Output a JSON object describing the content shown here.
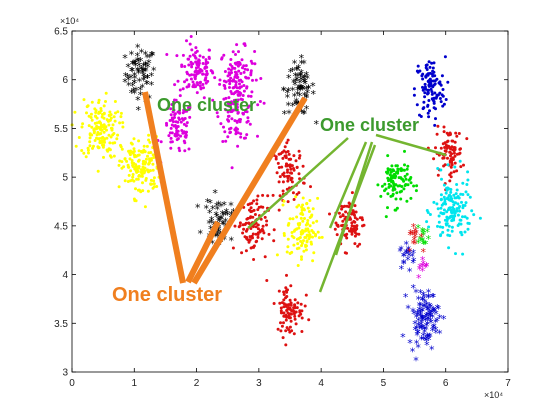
{
  "colors": {
    "black": "#000000",
    "magenta": "#dd00dd",
    "yellow": "#ffff00",
    "red": "#dd1111",
    "blue": "#0000cc",
    "green": "#00dd00",
    "cyan": "#00e5ee",
    "orange_annotation": "#f07f1f",
    "green_annotation": "#74b530"
  },
  "annotations": [
    {
      "text": "One cluster",
      "color": "#3c9a2e"
    },
    {
      "text": "One cluster",
      "color": "#3c9a2e"
    },
    {
      "text": "One cluster",
      "color": "#f07f1f"
    }
  ],
  "chart_data": {
    "type": "scatter",
    "title": "",
    "xlabel": "",
    "ylabel": "",
    "xlim": [
      0,
      70000
    ],
    "ylim": [
      30000,
      65000
    ],
    "x_ticks": [
      0,
      10000,
      20000,
      30000,
      40000,
      50000,
      60000,
      70000
    ],
    "y_ticks": [
      30000,
      35000,
      40000,
      45000,
      50000,
      55000,
      60000,
      65000
    ],
    "x_tick_labels": [
      "0",
      "1",
      "2",
      "3",
      "4",
      "5",
      "6",
      "7"
    ],
    "y_tick_labels": [
      "3",
      "3.5",
      "4",
      "4.5",
      "5",
      "5.5",
      "6",
      "6.5"
    ],
    "x_exponent_label": "×10⁴",
    "y_exponent_label": "×10⁴",
    "grid": false,
    "clusters": [
      {
        "color": "black",
        "marker": "star",
        "center": [
          11000,
          60500
        ],
        "spread": [
          2200,
          2500
        ],
        "count": 70
      },
      {
        "color": "magenta",
        "marker": "dot",
        "center": [
          20000,
          61000
        ],
        "spread": [
          2500,
          2500
        ],
        "count": 110
      },
      {
        "color": "magenta",
        "marker": "dot",
        "center": [
          26500,
          60500
        ],
        "spread": [
          2500,
          2500
        ],
        "count": 110
      },
      {
        "color": "black",
        "marker": "star",
        "center": [
          36500,
          59000
        ],
        "spread": [
          2200,
          2500
        ],
        "count": 70
      },
      {
        "color": "magenta",
        "marker": "dot",
        "center": [
          17000,
          55000
        ],
        "spread": [
          2200,
          2500
        ],
        "count": 90
      },
      {
        "color": "magenta",
        "marker": "dot",
        "center": [
          26500,
          56500
        ],
        "spread": [
          2500,
          2500
        ],
        "count": 90
      },
      {
        "color": "blue",
        "marker": "dot",
        "center": [
          57500,
          59000
        ],
        "spread": [
          2200,
          3000
        ],
        "count": 110
      },
      {
        "color": "yellow",
        "marker": "dot",
        "center": [
          4500,
          55000
        ],
        "spread": [
          2800,
          2800
        ],
        "count": 150
      },
      {
        "color": "yellow",
        "marker": "dot",
        "center": [
          11000,
          51000
        ],
        "spread": [
          2800,
          2800
        ],
        "count": 150
      },
      {
        "color": "red",
        "marker": "dot",
        "center": [
          60500,
          52500
        ],
        "spread": [
          2000,
          2200
        ],
        "count": 90
      },
      {
        "color": "red",
        "marker": "dot",
        "center": [
          35000,
          50500
        ],
        "spread": [
          2300,
          2500
        ],
        "count": 90
      },
      {
        "color": "green",
        "marker": "dot",
        "center": [
          52000,
          49500
        ],
        "spread": [
          2200,
          2200
        ],
        "count": 100
      },
      {
        "color": "cyan",
        "marker": "dot",
        "center": [
          61000,
          46500
        ],
        "spread": [
          2800,
          3200
        ],
        "count": 150
      },
      {
        "color": "black",
        "marker": "star",
        "center": [
          23500,
          45500
        ],
        "spread": [
          2000,
          2000
        ],
        "count": 60
      },
      {
        "color": "red",
        "marker": "dot",
        "center": [
          29000,
          45000
        ],
        "spread": [
          2200,
          2700
        ],
        "count": 100
      },
      {
        "color": "yellow",
        "marker": "dot",
        "center": [
          37000,
          44500
        ],
        "spread": [
          2200,
          3000
        ],
        "count": 110
      },
      {
        "color": "red",
        "marker": "dot",
        "center": [
          44500,
          45500
        ],
        "spread": [
          2200,
          2500
        ],
        "count": 90
      },
      {
        "color": "blue",
        "marker": "star",
        "center": [
          54000,
          42000
        ],
        "spread": [
          1200,
          1200
        ],
        "count": 20
      },
      {
        "color": "green",
        "marker": "star",
        "center": [
          56500,
          43500
        ],
        "spread": [
          900,
          1200
        ],
        "count": 14
      },
      {
        "color": "red",
        "marker": "star",
        "center": [
          55000,
          44000
        ],
        "spread": [
          900,
          1400
        ],
        "count": 14
      },
      {
        "color": "magenta",
        "marker": "star",
        "center": [
          56500,
          40500
        ],
        "spread": [
          800,
          1000
        ],
        "count": 10
      },
      {
        "color": "red",
        "marker": "dot",
        "center": [
          35000,
          36500
        ],
        "spread": [
          2000,
          2500
        ],
        "count": 90
      },
      {
        "color": "blue",
        "marker": "star",
        "center": [
          56500,
          35500
        ],
        "spread": [
          2200,
          2600
        ],
        "count": 110
      }
    ]
  }
}
